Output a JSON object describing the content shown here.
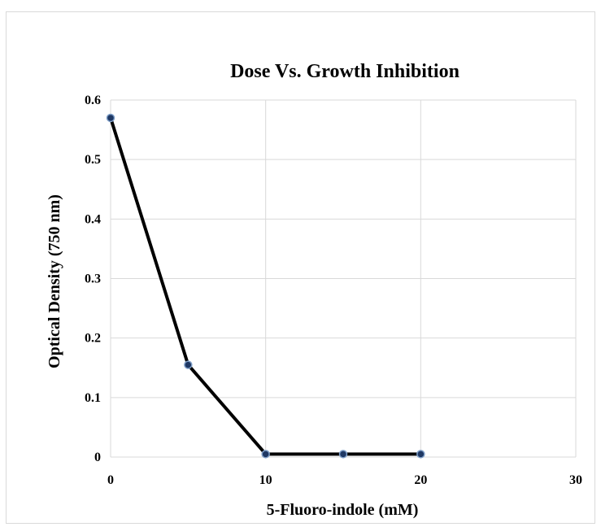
{
  "chart_data": {
    "type": "line",
    "title": "Dose Vs. Growth Inhibition",
    "xlabel": "5-Fluoro-indole (mM)",
    "ylabel": "Optical Density (750 nm)",
    "xlim": [
      0,
      30
    ],
    "ylim": [
      0,
      0.6
    ],
    "x_ticks": [
      "0",
      "10",
      "20",
      "30"
    ],
    "y_ticks": [
      "0",
      "0.1",
      "0.2",
      "0.3",
      "0.4",
      "0.5",
      "0.6"
    ],
    "grid": true,
    "legend": "none",
    "series": [
      {
        "x": [
          0,
          5,
          10,
          15,
          20
        ],
        "values": [
          0.57,
          0.155,
          0.005,
          0.005,
          0.005
        ],
        "line_color": "#000000",
        "marker_color": "#1f3864"
      }
    ]
  }
}
